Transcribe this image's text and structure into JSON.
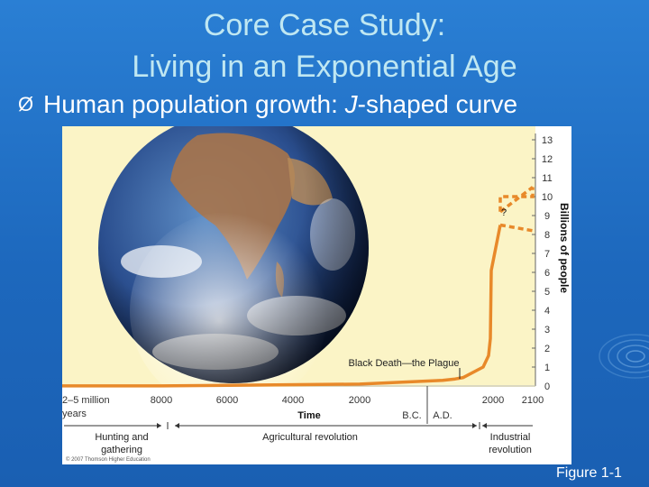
{
  "slide": {
    "title_line1": "Core Case Study:",
    "title_line2": "Living in an Exponential Age",
    "bullet_symbol": "Ø",
    "bullet_text_prefix": "Human population growth: ",
    "bullet_text_italic": "J",
    "bullet_text_suffix": "-shaped curve",
    "figure_label": "Figure 1-1",
    "credit": "© 2007 Thomson Higher Education"
  },
  "colors": {
    "background": "#1f6fc4",
    "title": "#bfe7f2",
    "chart_bg": "#fbf4c6",
    "line": "#e8892a",
    "text": "#222222"
  },
  "chart_data": {
    "type": "line",
    "title": "",
    "xlabel": "Time",
    "ylabel": "Billions of people",
    "ylim": [
      0,
      13
    ],
    "y_ticks": [
      "0",
      "1",
      "2",
      "3",
      "4",
      "5",
      "6",
      "7",
      "8",
      "9",
      "10",
      "11",
      "12",
      "13"
    ],
    "x_ticks": [
      "2–5 million",
      "8000",
      "6000",
      "4000",
      "2000",
      "2000",
      "2100"
    ],
    "x_tick_sub": "years",
    "era_labels": [
      "B.C.",
      "A.D."
    ],
    "series": [
      {
        "x": [
          -8000,
          -2000,
          1000,
          1350,
          1500,
          1800,
          1900,
          1950,
          2000,
          2050
        ],
        "values": [
          0.005,
          0.1,
          0.3,
          0.37,
          0.45,
          1.0,
          1.6,
          2.5,
          6.1,
          8.5
        ]
      },
      {
        "x": [
          2050,
          2100
        ],
        "values": [
          9.2,
          10.5
        ],
        "style": "dashed"
      },
      {
        "x": [
          2050,
          2100
        ],
        "values": [
          8.5,
          8.2
        ],
        "style": "dashed"
      }
    ],
    "annotations": [
      {
        "text": "?",
        "x": 2050,
        "y": 8.8
      },
      {
        "text": "Black Death—the Plague",
        "x": 1350,
        "y": 1.2
      }
    ],
    "periods": [
      {
        "label": [
          "Hunting and",
          "gathering"
        ]
      },
      {
        "label": [
          "Agricultural revolution"
        ]
      },
      {
        "label": [
          "Industrial",
          "revolution"
        ]
      }
    ],
    "grid": false
  }
}
